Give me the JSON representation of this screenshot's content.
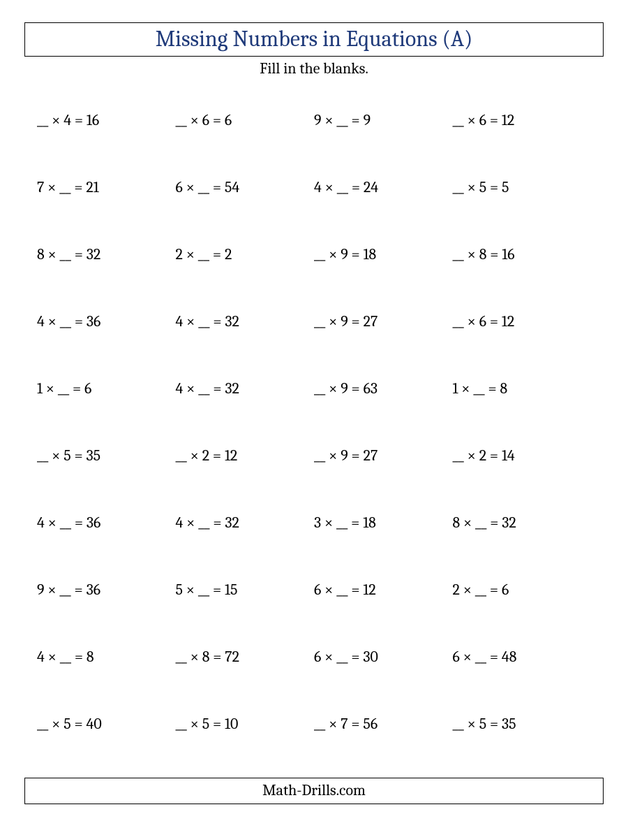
{
  "title": "Missing Numbers in Equations (A)",
  "subtitle": "Fill in the blanks.",
  "footer": "Math-Drills.com",
  "title_color": "#1f3a7a",
  "body_color": "#000000",
  "background_color": "#ffffff",
  "font_family": "Cambria, Georgia, serif",
  "title_fontsize": 32,
  "body_fontsize": 22,
  "grid": {
    "rows": 10,
    "cols": 4
  },
  "equations": [
    "__ × 4 = 16",
    "__ × 6 = 6",
    "9 × __ = 9",
    "__ × 6 = 12",
    "7 × __ = 21",
    "6 × __ = 54",
    "4 × __ = 24",
    "__ × 5 = 5",
    "8 × __ = 32",
    "2 × __ = 2",
    "__ × 9 = 18",
    "__ × 8 = 16",
    "4 × __ = 36",
    "4 × __ = 32",
    "__ × 9 = 27",
    "__ × 6 = 12",
    "1 × __ = 6",
    "4 × __ = 32",
    "__ × 9 = 63",
    "1 × __ = 8",
    "__ × 5 = 35",
    "__ × 2 = 12",
    "__ × 9 = 27",
    "__ × 2 = 14",
    "4 × __ = 36",
    "4 × __ = 32",
    "3 × __ = 18",
    "8 × __ = 32",
    "9 × __ = 36",
    "5 × __ = 15",
    "6 × __ = 12",
    "2 × __ = 6",
    "4 × __ = 8",
    "__ × 8 = 72",
    "6 × __ = 30",
    "6 × __ = 48",
    "__ × 5 = 40",
    "__ × 5 = 10",
    "__ × 7 = 56",
    "__ × 5 = 35"
  ]
}
